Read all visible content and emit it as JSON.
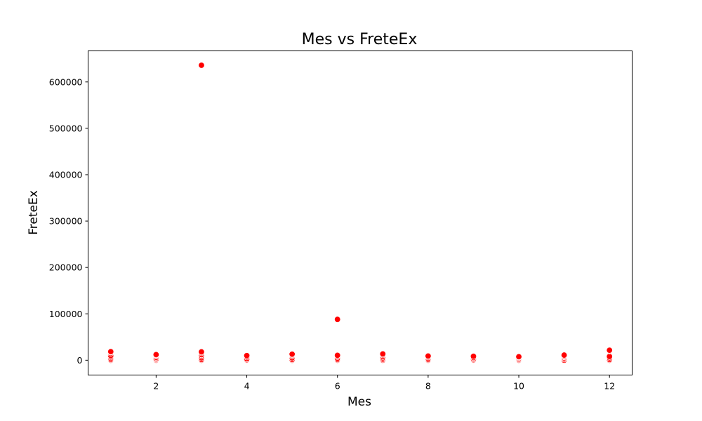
{
  "chart_data": {
    "type": "scatter",
    "title": "Mes vs FreteEx",
    "xlabel": "Mes",
    "ylabel": "FreteEx",
    "xlim": [
      0.5,
      12.5
    ],
    "ylim": [
      -32000,
      667000
    ],
    "xticks": [
      2,
      4,
      6,
      8,
      10,
      12
    ],
    "yticks": [
      0,
      100000,
      200000,
      300000,
      400000,
      500000,
      600000
    ],
    "grid": false,
    "legend": "none",
    "colors": {
      "marker_fill": "#ff0000",
      "marker_edge": "#ffffff"
    },
    "series": [
      {
        "x": [
          1,
          1,
          1,
          1,
          1,
          1,
          1,
          1,
          2,
          2,
          2,
          2,
          2,
          2,
          2,
          3,
          3,
          3,
          3,
          3,
          3,
          3,
          3,
          4,
          4,
          4,
          4,
          4,
          5,
          5,
          5,
          5,
          5,
          5,
          6,
          6,
          6,
          6,
          6,
          6,
          7,
          7,
          7,
          7,
          7,
          7,
          8,
          8,
          8,
          8,
          8,
          9,
          9,
          9,
          9,
          9,
          10,
          10,
          10,
          10,
          10,
          11,
          11,
          11,
          11,
          11,
          11,
          12,
          12,
          12,
          12,
          12,
          12
        ],
        "y": [
          0,
          1500,
          4000,
          7000,
          10000,
          15000,
          17500,
          18500,
          0,
          1500,
          3000,
          6000,
          9000,
          11000,
          12000,
          636000,
          0,
          1500,
          5000,
          9000,
          12000,
          16000,
          18000,
          0,
          1000,
          3000,
          7000,
          10000,
          0,
          1500,
          5000,
          9000,
          11500,
          13000,
          88000,
          0,
          1500,
          4000,
          8000,
          10500,
          0,
          2000,
          5000,
          8000,
          11500,
          13500,
          0,
          1500,
          4000,
          7000,
          9000,
          0,
          1000,
          3000,
          6000,
          8500,
          0,
          1500,
          3500,
          6000,
          7500,
          0,
          2500,
          5000,
          7500,
          9500,
          11000,
          0,
          1500,
          5000,
          8000,
          20000,
          21500
        ]
      }
    ]
  }
}
